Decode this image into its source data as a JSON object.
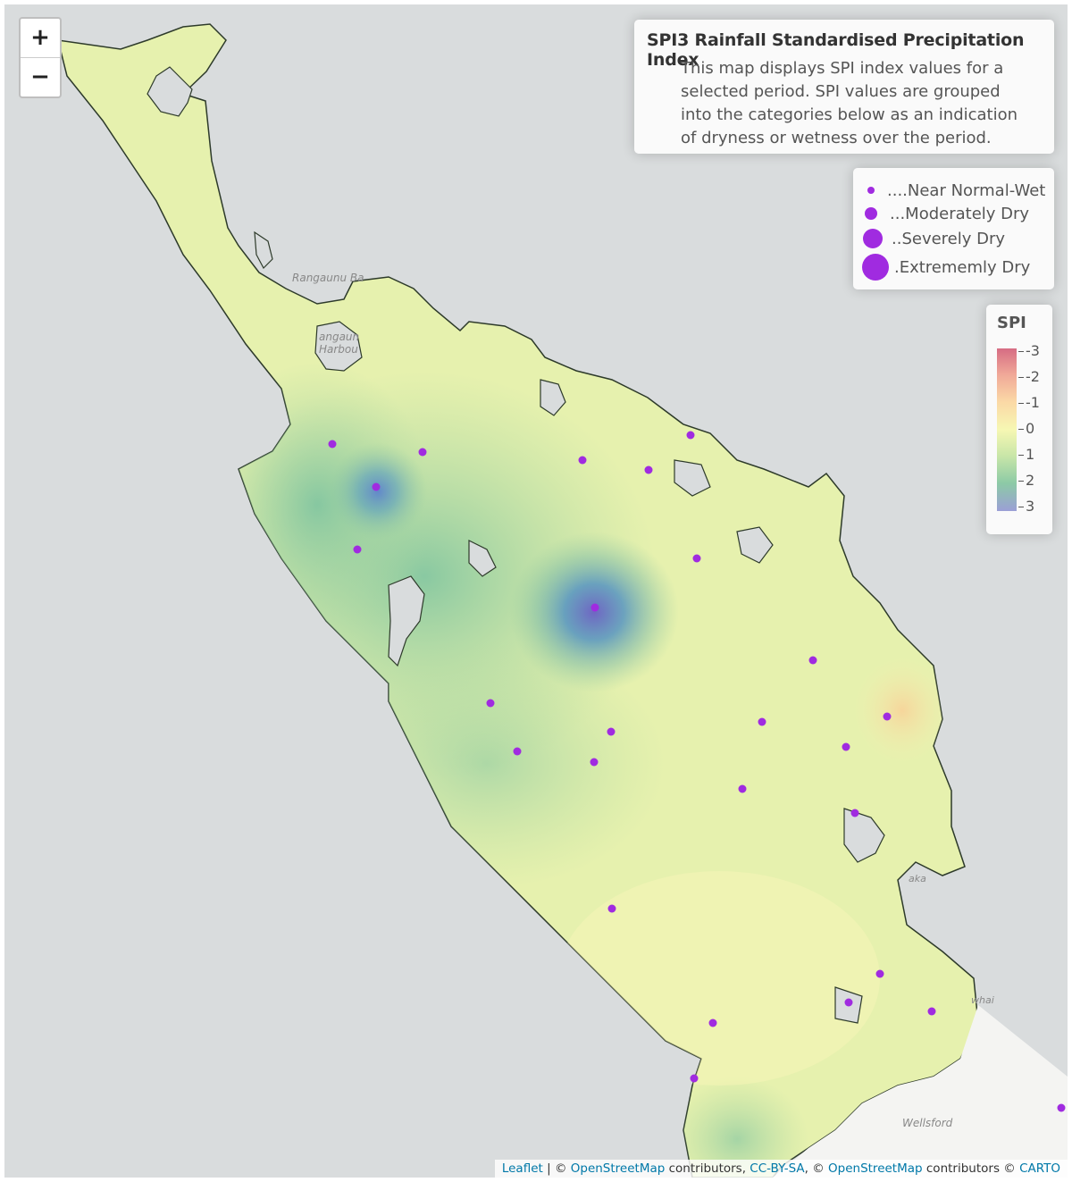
{
  "zoom": {
    "in_label": "+",
    "out_label": "−"
  },
  "info": {
    "title": "SPI3 Rainfall Standardised Precipitation Index",
    "text": "This map displays SPI index values for a selected period. SPI values are grouped into the categories below as an indication of dryness or wetness over the period."
  },
  "size_legend": {
    "items": [
      {
        "label": "....Near Normal-Wet"
      },
      {
        "label": "...Moderately Dry"
      },
      {
        "label": "..Severely Dry"
      },
      {
        "label": ".Extrememly Dry"
      }
    ],
    "dot_color": "#a02be0"
  },
  "spi_legend": {
    "title": "SPI",
    "ticks": [
      "-3",
      "-2",
      "-1",
      "0",
      "1",
      "2",
      "3"
    ],
    "colors": [
      "#d66c83",
      "#f0a898",
      "#fbd9a6",
      "#f6f7b3",
      "#c9e6a8",
      "#8ccaa6",
      "#9b9fd6"
    ]
  },
  "place_labels": [
    "Rangaunu Ba",
    "angaun",
    "Harbou",
    "aka",
    "whai",
    "Wellsford"
  ],
  "attribution": {
    "leaflet": "Leaflet",
    "sep1": " | © ",
    "osm1": "OpenStreetMap",
    "mid1": " contributors, ",
    "ccbysa": "CC-BY-SA",
    "sep2": ", © ",
    "osm2": "OpenStreetMap",
    "mid2": " contributors © ",
    "carto": "CARTO"
  },
  "colors": {
    "station": "#a02be0",
    "sea": "#d9dcdd",
    "land": "#e8f2b0"
  }
}
